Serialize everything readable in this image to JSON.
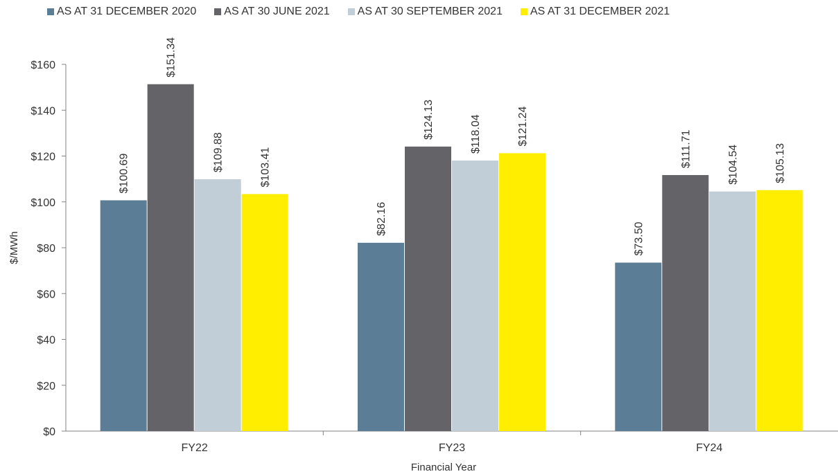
{
  "chart_data": {
    "type": "bar",
    "categories": [
      "FY22",
      "FY23",
      "FY24"
    ],
    "series": [
      {
        "name": "AS AT 31 DECEMBER 2020",
        "color": "#5b7d96",
        "values": [
          100.69,
          82.16,
          73.5
        ],
        "labels": [
          "$100.69",
          "$82.16",
          "$73.50"
        ]
      },
      {
        "name": "AS AT 30 JUNE 2021",
        "color": "#636368",
        "values": [
          151.34,
          124.13,
          111.71
        ],
        "labels": [
          "$151.34",
          "$124.13",
          "$111.71"
        ]
      },
      {
        "name": "AS AT 30 SEPTEMBER 2021",
        "color": "#c1ced8",
        "values": [
          109.88,
          118.04,
          104.54
        ],
        "labels": [
          "$109.88",
          "$118.04",
          "$104.54"
        ]
      },
      {
        "name": "AS AT 31 DECEMBER 2021",
        "color": "#ffee00",
        "values": [
          103.41,
          121.24,
          105.13
        ],
        "labels": [
          "$103.41",
          "$121.24",
          "$105.13"
        ]
      }
    ],
    "xlabel": "Financial Year",
    "ylabel": "$/MWh",
    "ylim": [
      0,
      160
    ],
    "yticks": [
      0,
      20,
      40,
      60,
      80,
      100,
      120,
      140,
      160
    ],
    "ytick_labels": [
      "$0",
      "$20",
      "$40",
      "$60",
      "$80",
      "$100",
      "$120",
      "$140",
      "$160"
    ],
    "grid": false,
    "legend_position": "top"
  }
}
